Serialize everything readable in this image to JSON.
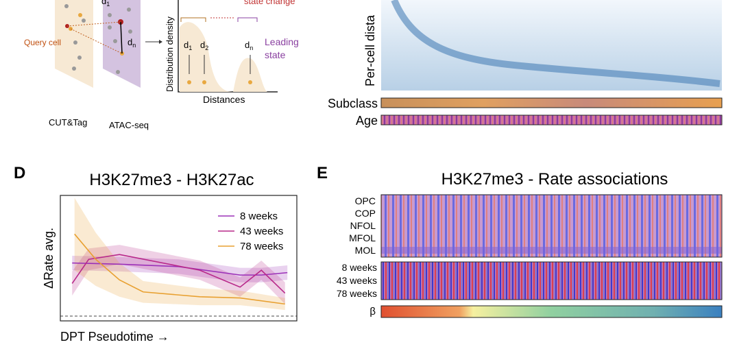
{
  "panel_c": {
    "query_label": "Query cell",
    "d1": "d",
    "d1_sub": "1",
    "dn": "d",
    "dn_sub": "n",
    "left_plane": "CUT&Tag",
    "right_plane": "ATAC-seq",
    "density_axis": "Distribution density",
    "distance_axis": "Distances",
    "state_change": "state change",
    "leading_state_1": "Leading",
    "leading_state_2": "state",
    "peak_d1": "d",
    "peak_d1_sub": "1",
    "peak_d2": "d",
    "peak_d2_sub": "2",
    "peak_dn": "d",
    "peak_dn_sub": "n",
    "heatmap_ylabel": "Per-cell dista",
    "subclass": "Subclass",
    "age": "Age"
  },
  "chart_data": {
    "type": "line",
    "panel": "D",
    "title": "H3K27me3 - H3K27ac",
    "y_label": "ΔRate avg.",
    "x_label": "DPT Pseudotime →",
    "xlim": [
      0,
      1
    ],
    "ylim": [
      -0.04,
      1.0
    ],
    "reference_line": 0,
    "legend": "upper right",
    "series": [
      {
        "name": "8 weeks",
        "color": "#9b30b8",
        "x": [
          0.05,
          0.25,
          0.5,
          0.76,
          0.85,
          0.96
        ],
        "values": [
          0.44,
          0.43,
          0.41,
          0.34,
          0.34,
          0.36
        ],
        "errors": [
          0.06,
          0.06,
          0.06,
          0.06,
          0.06,
          0.06
        ]
      },
      {
        "name": "43 weeks",
        "color": "#b8288a",
        "x": [
          0.05,
          0.12,
          0.25,
          0.59,
          0.76,
          0.85,
          0.95
        ],
        "values": [
          0.27,
          0.47,
          0.51,
          0.38,
          0.24,
          0.38,
          0.19
        ],
        "errors": [
          0.1,
          0.09,
          0.08,
          0.08,
          0.08,
          0.08,
          0.09
        ]
      },
      {
        "name": "78 weeks",
        "color": "#e8a030",
        "x": [
          0.06,
          0.15,
          0.25,
          0.35,
          0.59,
          0.76,
          0.95
        ],
        "values": [
          0.68,
          0.47,
          0.3,
          0.2,
          0.16,
          0.15,
          0.1
        ],
        "errors": [
          0.3,
          0.22,
          0.14,
          0.09,
          0.07,
          0.06,
          0.05
        ]
      }
    ]
  },
  "panel_e": {
    "panel": "E",
    "title": "H3K27me3 - Rate associations",
    "subclass_rows": [
      "OPC",
      "COP",
      "NFOL",
      "MFOL",
      "MOL"
    ],
    "age_rows": [
      "8 weeks",
      "43 weeks",
      "78 weeks"
    ],
    "beta": "β"
  }
}
